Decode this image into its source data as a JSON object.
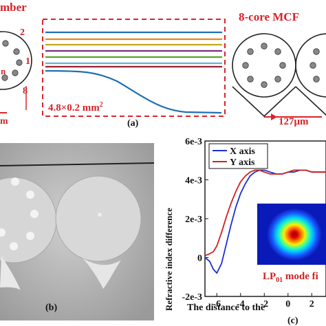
{
  "panel_a": {
    "left_label_partial": "mber",
    "left_label_partial2": "n",
    "left_label_partial3": "m",
    "left_num_1": "1",
    "left_num_2": "2",
    "left_num_8": "8",
    "box_dim": "4.8×0.2 mm",
    "box_dim_sup": "2",
    "right_label": "8-core MCF",
    "right_dim": "127μm",
    "panel_tag": "(a)",
    "line_colors": [
      "#1f6fb4",
      "#e8871e",
      "#c4a817",
      "#7a2d8c",
      "#5aa02c",
      "#5bb8d6",
      "#9c1f2e"
    ]
  },
  "panel_b": {
    "panel_tag": "(b)"
  },
  "panel_c": {
    "panel_tag": "(c)",
    "chart_data": {
      "type": "line",
      "ylabel": "Refractive index difference",
      "xlabel": "The distance to the",
      "yticks": [
        "6e-3",
        "4e-3",
        "2e-3",
        "0",
        "-2e-3"
      ],
      "xticks": [
        "-6",
        "-4",
        "-2",
        "0",
        "2"
      ],
      "xlim": [
        -7,
        3.2
      ],
      "ylim": [
        -0.002,
        0.006
      ],
      "legend": "top-left",
      "series": [
        {
          "name": "X axis",
          "color": "#1a2fd0",
          "x": [
            -7,
            -6.6,
            -6.3,
            -6.0,
            -5.6,
            -5.2,
            -4.8,
            -4.4,
            -4.0,
            -3.6,
            -3.2,
            -2.8,
            -2.4,
            -2.0,
            -1.5,
            -1.0,
            -0.5,
            0,
            0.5,
            1.0,
            1.5,
            2.0,
            2.5,
            3.2
          ],
          "y": [
            0.0,
            -0.0002,
            -0.0006,
            -0.0008,
            -0.0003,
            0.0007,
            0.0017,
            0.0026,
            0.0033,
            0.0038,
            0.0042,
            0.0044,
            0.0045,
            0.0045,
            0.0044,
            0.0043,
            0.0043,
            0.0044,
            0.0044,
            0.0045,
            0.0045,
            0.0044,
            0.0044,
            0.0044
          ]
        },
        {
          "name": "Y axis",
          "color": "#d21f1f",
          "x": [
            -7,
            -6.6,
            -6.3,
            -6.0,
            -5.6,
            -5.2,
            -4.8,
            -4.4,
            -4.0,
            -3.6,
            -3.2,
            -2.8,
            -2.4,
            -2.0,
            -1.5,
            -1.0,
            -0.5,
            0,
            0.5,
            1.0,
            1.5,
            2.0,
            2.5,
            3.2
          ],
          "y": [
            0.0001,
            0.0002,
            0.0003,
            0.0006,
            0.0013,
            0.0021,
            0.0028,
            0.0034,
            0.0039,
            0.0042,
            0.0044,
            0.0045,
            0.0045,
            0.0044,
            0.0043,
            0.0043,
            0.0043,
            0.0044,
            0.0045,
            0.0045,
            0.0045,
            0.0044,
            0.0044,
            0.0044
          ]
        }
      ]
    },
    "inset_label": "LP",
    "inset_label_sub": "01",
    "inset_label_rest": " mode fi"
  }
}
